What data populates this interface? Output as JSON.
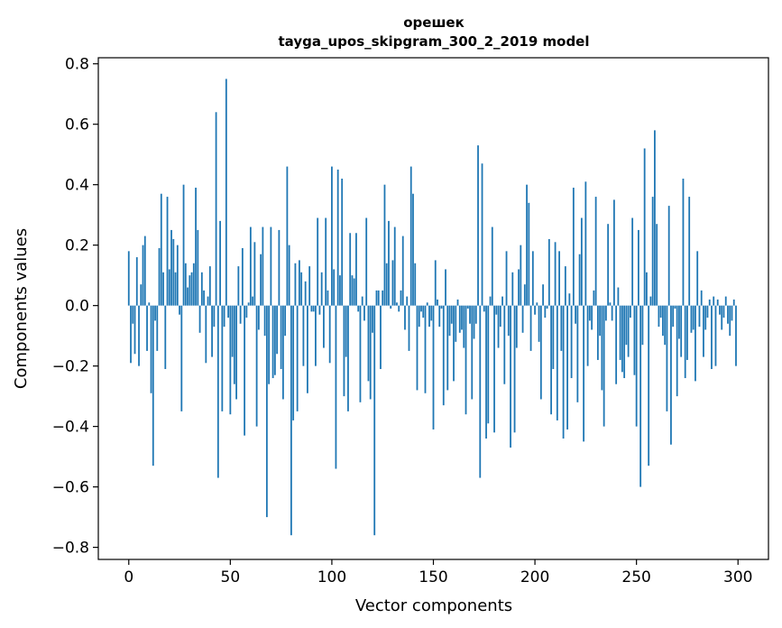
{
  "chart_data": {
    "type": "bar",
    "title": "орешек",
    "subtitle": "tayga_upos_skipgram_300_2_2019 model",
    "xlabel": "Vector components",
    "ylabel": "Components values",
    "xlim": [
      -15,
      315
    ],
    "ylim": [
      -0.84,
      0.82
    ],
    "xticks": [
      0,
      50,
      100,
      150,
      200,
      250,
      300
    ],
    "yticks": [
      -0.8,
      -0.6,
      -0.4,
      -0.2,
      0.0,
      0.2,
      0.4,
      0.6,
      0.8
    ],
    "ytick_labels": [
      "−0.8",
      "−0.6",
      "−0.4",
      "−0.2",
      "0.0",
      "0.2",
      "0.4",
      "0.6",
      "0.8"
    ],
    "grid": false,
    "bar_color": "#1f77b4",
    "x": "component index 0..299",
    "values": [
      0.18,
      -0.19,
      -0.06,
      -0.16,
      0.16,
      -0.2,
      0.07,
      0.2,
      0.23,
      -0.15,
      0.01,
      -0.29,
      -0.53,
      -0.05,
      -0.15,
      0.19,
      0.37,
      0.11,
      -0.21,
      0.36,
      0.12,
      0.25,
      0.22,
      0.11,
      0.2,
      -0.03,
      -0.35,
      0.4,
      0.14,
      0.06,
      0.1,
      0.11,
      0.14,
      0.39,
      0.25,
      -0.09,
      0.11,
      0.05,
      -0.19,
      0.03,
      0.13,
      -0.17,
      -0.07,
      0.64,
      -0.57,
      0.28,
      -0.35,
      -0.07,
      0.75,
      -0.04,
      -0.36,
      -0.17,
      -0.26,
      -0.31,
      0.13,
      -0.06,
      0.19,
      -0.43,
      -0.04,
      0.01,
      0.26,
      0.03,
      0.21,
      -0.4,
      -0.08,
      0.17,
      0.26,
      -0.1,
      -0.7,
      -0.26,
      0.26,
      -0.24,
      -0.23,
      -0.16,
      0.25,
      -0.21,
      -0.31,
      -0.1,
      0.46,
      0.2,
      -0.76,
      -0.38,
      0.14,
      -0.35,
      0.15,
      0.11,
      -0.2,
      0.08,
      -0.29,
      0.13,
      -0.02,
      -0.02,
      -0.2,
      0.29,
      -0.03,
      0.11,
      -0.14,
      0.29,
      0.05,
      -0.19,
      0.46,
      0.12,
      -0.54,
      0.45,
      0.1,
      0.42,
      -0.3,
      -0.17,
      -0.35,
      0.24,
      0.1,
      0.09,
      0.24,
      -0.02,
      -0.32,
      0.03,
      -0.05,
      0.29,
      -0.25,
      -0.31,
      -0.09,
      -0.76,
      0.05,
      0.05,
      -0.21,
      0.05,
      0.4,
      0.14,
      0.28,
      -0.01,
      0.15,
      0.26,
      0.01,
      -0.02,
      0.05,
      0.23,
      -0.08,
      0.03,
      -0.15,
      0.46,
      0.37,
      0.14,
      -0.28,
      -0.07,
      -0.02,
      -0.04,
      -0.29,
      0.01,
      -0.07,
      -0.05,
      -0.41,
      0.15,
      0.02,
      -0.07,
      -0.01,
      -0.33,
      0.12,
      -0.28,
      -0.1,
      -0.06,
      -0.25,
      -0.12,
      0.02,
      -0.09,
      -0.08,
      -0.14,
      -0.36,
      -0.01,
      -0.06,
      -0.31,
      -0.11,
      -0.06,
      0.53,
      -0.57,
      0.47,
      -0.02,
      -0.44,
      -0.39,
      0.03,
      0.26,
      -0.42,
      -0.03,
      -0.14,
      -0.07,
      0.03,
      -0.26,
      0.18,
      -0.1,
      -0.47,
      0.11,
      -0.42,
      -0.14,
      0.12,
      0.2,
      -0.09,
      0.07,
      0.4,
      0.34,
      -0.15,
      0.18,
      -0.03,
      0.01,
      -0.12,
      -0.31,
      0.07,
      -0.04,
      -0.01,
      0.22,
      -0.36,
      -0.21,
      0.21,
      -0.38,
      0.18,
      -0.15,
      -0.44,
      0.13,
      -0.41,
      0.04,
      -0.24,
      0.39,
      -0.06,
      -0.32,
      0.17,
      0.29,
      -0.45,
      0.41,
      -0.2,
      -0.05,
      -0.08,
      0.05,
      0.36,
      -0.18,
      -0.1,
      -0.28,
      -0.4,
      -0.05,
      0.27,
      0.01,
      -0.05,
      0.35,
      -0.26,
      0.06,
      -0.18,
      -0.22,
      -0.24,
      -0.13,
      -0.17,
      -0.04,
      0.29,
      -0.23,
      -0.4,
      0.25,
      -0.6,
      -0.13,
      0.52,
      0.11,
      -0.53,
      0.03,
      0.36,
      0.58,
      0.27,
      -0.07,
      -0.04,
      -0.1,
      -0.13,
      -0.35,
      0.33,
      -0.46,
      -0.07,
      -0.01,
      -0.3,
      -0.11,
      -0.17,
      0.42,
      -0.24,
      -0.18,
      0.36,
      -0.09,
      -0.08,
      -0.25,
      0.18,
      -0.07,
      0.05,
      -0.17,
      -0.08,
      -0.04,
      0.02,
      -0.21,
      0.03,
      -0.2,
      0.02,
      -0.03,
      -0.08,
      -0.04,
      0.03,
      -0.06,
      -0.1,
      -0.05,
      0.02,
      -0.2
    ]
  }
}
